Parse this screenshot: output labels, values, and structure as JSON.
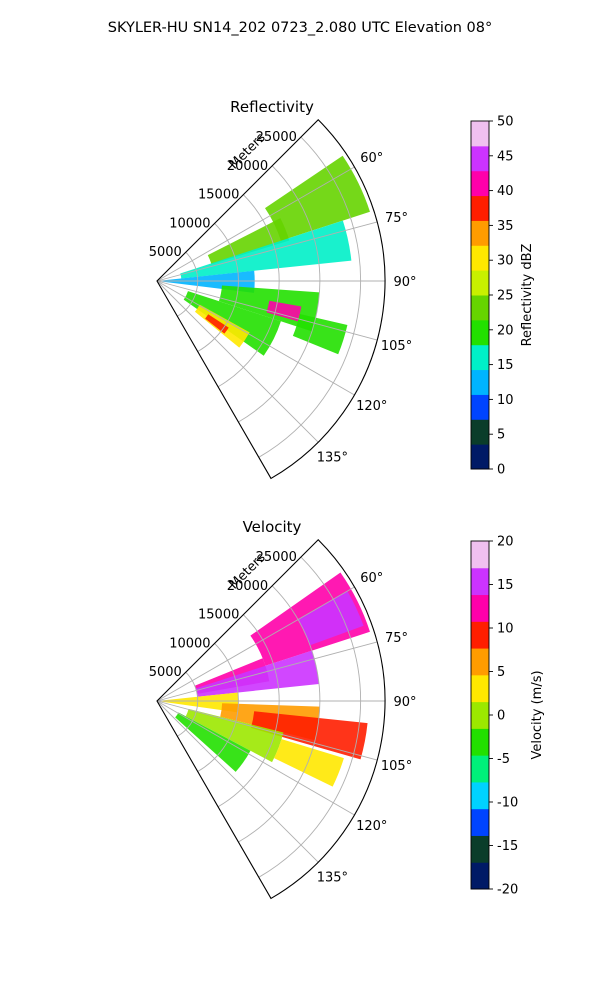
{
  "figure_title": "SKYLER-HU  SN14_202  0723_2.080 UTC Elevation 08°",
  "chart_data": [
    {
      "type": "heatmap",
      "projection": "polar-sector",
      "title": "Reflectivity",
      "radial_label": "Meters",
      "range_ticks": [
        5000,
        10000,
        15000,
        20000,
        25000
      ],
      "range_max": 28000,
      "azimuth_range": [
        45,
        150
      ],
      "azimuth_ticks": [
        60,
        75,
        90,
        105,
        120,
        135
      ],
      "colorbar": {
        "label": "Reflectivity dBZ",
        "range": [
          0,
          50
        ],
        "ticks": [
          0,
          5,
          10,
          15,
          20,
          25,
          30,
          35,
          40,
          45,
          50
        ]
      },
      "colors": [
        "#001a66",
        "#0a3d2a",
        "#0044ff",
        "#00b4ff",
        "#00f0c8",
        "#22e000",
        "#66d400",
        "#c8f000",
        "#ffe800",
        "#ff9c00",
        "#ff1e00",
        "#ff00aa",
        "#cc33ff",
        "#f0c0f0"
      ],
      "regions": [
        {
          "az": [
            56,
            72
          ],
          "r": [
            16000,
            27500
          ],
          "value": 22
        },
        {
          "az": [
            63,
            73
          ],
          "r": [
            7000,
            17000
          ],
          "value": 24
        },
        {
          "az": [
            72,
            84
          ],
          "r": [
            3000,
            24000
          ],
          "value": 17
        },
        {
          "az": [
            84,
            97
          ],
          "r": [
            0,
            12000
          ],
          "value": 11
        },
        {
          "az": [
            94,
            108
          ],
          "r": [
            8000,
            20000
          ],
          "value": 20
        },
        {
          "az": [
            100,
            106
          ],
          "r": [
            14000,
            18000
          ],
          "value": 42
        },
        {
          "az": [
            103,
            112
          ],
          "r": [
            18000,
            24000
          ],
          "value": 21
        },
        {
          "az": [
            108,
            125
          ],
          "r": [
            4000,
            16000
          ],
          "value": 20
        },
        {
          "az": [
            119,
            129
          ],
          "r": [
            6000,
            13000
          ],
          "value": 32
        },
        {
          "az": [
            123,
            128
          ],
          "r": [
            7500,
            10500
          ],
          "value": 37
        }
      ]
    },
    {
      "type": "heatmap",
      "projection": "polar-sector",
      "title": "Velocity",
      "radial_label": "Meters",
      "range_ticks": [
        5000,
        10000,
        15000,
        20000,
        25000
      ],
      "range_max": 28000,
      "azimuth_range": [
        45,
        150
      ],
      "azimuth_ticks": [
        60,
        75,
        90,
        105,
        120,
        135
      ],
      "colorbar": {
        "label": "Velocity (m/s)",
        "range": [
          -20,
          20
        ],
        "ticks": [
          -20,
          -15,
          -10,
          -5,
          0,
          5,
          10,
          15,
          20
        ]
      },
      "colors": [
        "#001a66",
        "#0a3d2a",
        "#0044ff",
        "#00d2ff",
        "#00f07a",
        "#22e000",
        "#9ce800",
        "#ffe800",
        "#ff9c00",
        "#ff1e00",
        "#ff00aa",
        "#cc33ff",
        "#f0c0f0"
      ],
      "regions": [
        {
          "az": [
            55,
            72
          ],
          "r": [
            14000,
            27500
          ],
          "value": 11
        },
        {
          "az": [
            60,
            70
          ],
          "r": [
            20000,
            27000
          ],
          "value": 14
        },
        {
          "az": [
            68,
            80
          ],
          "r": [
            5000,
            14000
          ],
          "value": 11
        },
        {
          "az": [
            72,
            84
          ],
          "r": [
            5000,
            20000
          ],
          "value": 14
        },
        {
          "az": [
            84,
            98
          ],
          "r": [
            0,
            10000
          ],
          "value": 2
        },
        {
          "az": [
            92,
            104
          ],
          "r": [
            8000,
            20000
          ],
          "value": 6
        },
        {
          "az": [
            96,
            106
          ],
          "r": [
            12000,
            26000
          ],
          "value": 8
        },
        {
          "az": [
            104,
            118
          ],
          "r": [
            4000,
            16000
          ],
          "value": 1
        },
        {
          "az": [
            118,
            132
          ],
          "r": [
            3000,
            13000
          ],
          "value": -4
        },
        {
          "az": [
            107,
            116
          ],
          "r": [
            16000,
            24000
          ],
          "value": 3
        }
      ]
    }
  ]
}
